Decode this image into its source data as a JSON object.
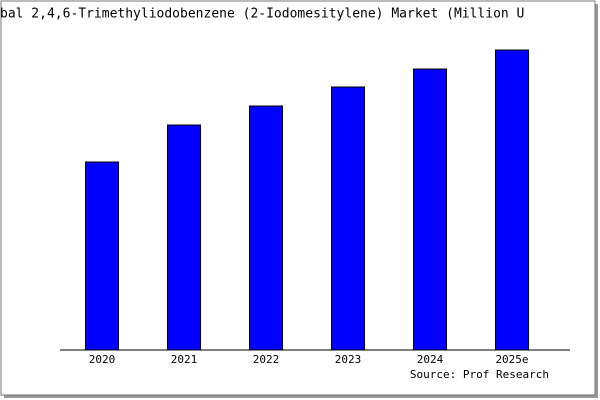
{
  "chart_data": {
    "type": "bar",
    "title": "bal 2,4,6-Trimethyliodobenzene (2-Iodomesitylene) Market (Million U",
    "categories": [
      "2020",
      "2021",
      "2022",
      "2023",
      "2024",
      "2025e"
    ],
    "values": [
      188,
      225,
      244,
      263,
      281,
      300
    ],
    "color": "#0000ff",
    "ylim": [
      0,
      320
    ],
    "source": "Source: Prof Research"
  }
}
